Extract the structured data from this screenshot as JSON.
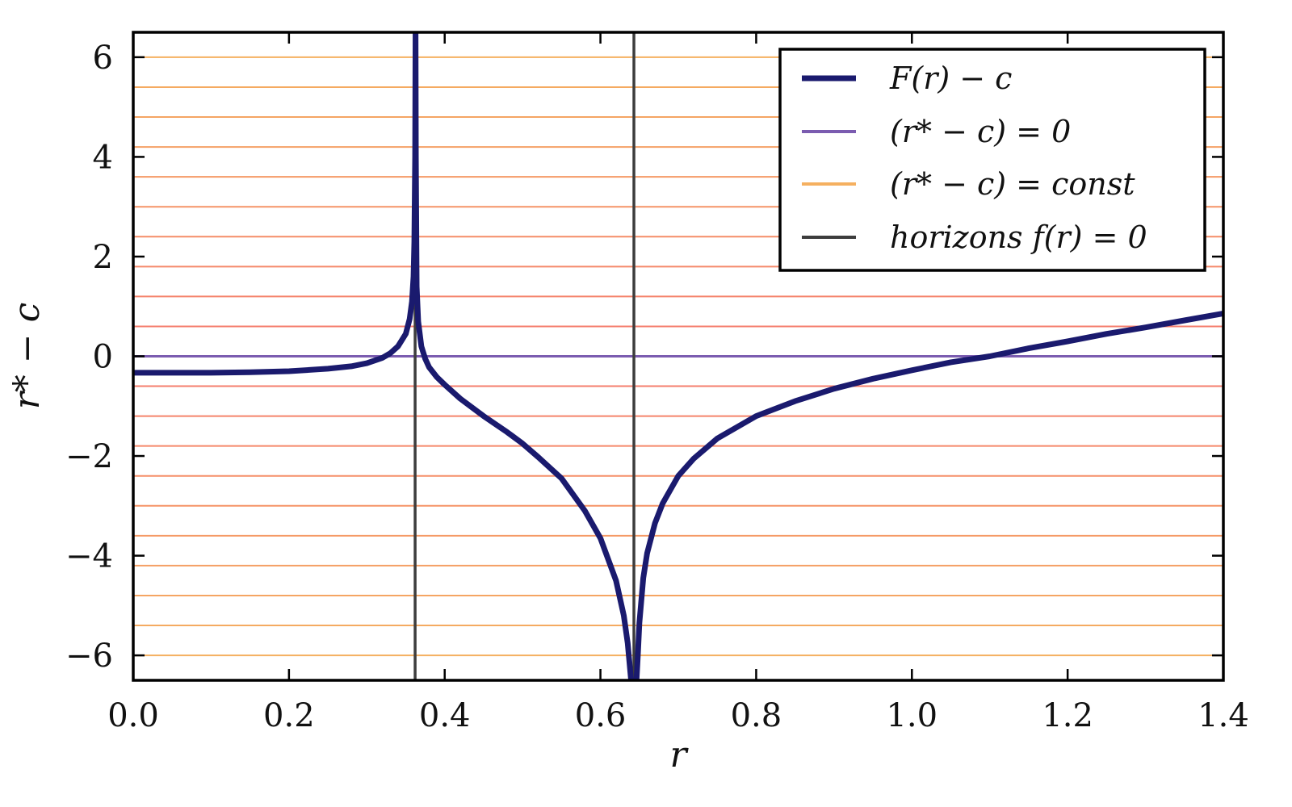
{
  "chart_data": {
    "type": "line",
    "xlabel": "r",
    "ylabel": "r* − c",
    "xlim": [
      0.0,
      1.4
    ],
    "ylim": [
      -6.5,
      6.5
    ],
    "x_ticks": [
      0.0,
      0.2,
      0.4,
      0.6,
      0.8,
      1.0,
      1.2,
      1.4
    ],
    "x_tick_labels": [
      "0.0",
      "0.2",
      "0.4",
      "0.6",
      "0.8",
      "1.0",
      "1.2",
      "1.4"
    ],
    "y_ticks": [
      6,
      4,
      2,
      0,
      -2,
      -4,
      -6
    ],
    "y_tick_labels": [
      "6",
      "4",
      "2",
      "0",
      "−2",
      "−4",
      "−6"
    ],
    "grid": false,
    "legend_position": "top-right",
    "series": [
      {
        "name": "F(r) − c",
        "color": "#1a1a6e",
        "x": [
          0.0,
          0.05,
          0.1,
          0.15,
          0.2,
          0.25,
          0.28,
          0.3,
          0.32,
          0.33,
          0.34,
          0.35,
          0.355,
          0.358,
          0.36,
          0.361,
          0.362,
          0.3625,
          0.363,
          0.364,
          0.366,
          0.37,
          0.375,
          0.38,
          0.39,
          0.4,
          0.42,
          0.45,
          0.48,
          0.5,
          0.52,
          0.55,
          0.58,
          0.6,
          0.62,
          0.63,
          0.635,
          0.64,
          0.642,
          0.643,
          0.644,
          0.645,
          0.646,
          0.648,
          0.65,
          0.655,
          0.66,
          0.67,
          0.68,
          0.7,
          0.72,
          0.75,
          0.8,
          0.85,
          0.9,
          0.95,
          1.0,
          1.05,
          1.1,
          1.15,
          1.2,
          1.25,
          1.3,
          1.35,
          1.4
        ],
        "y": [
          -0.33,
          -0.33,
          -0.33,
          -0.32,
          -0.3,
          -0.25,
          -0.2,
          -0.14,
          -0.03,
          0.06,
          0.2,
          0.45,
          0.75,
          1.1,
          1.6,
          2.3,
          4.0,
          6.6,
          4.0,
          1.4,
          0.7,
          0.2,
          -0.05,
          -0.22,
          -0.42,
          -0.57,
          -0.85,
          -1.2,
          -1.52,
          -1.75,
          -2.02,
          -2.45,
          -3.1,
          -3.65,
          -4.5,
          -5.2,
          -5.75,
          -6.6,
          -6.6,
          -6.6,
          -6.6,
          -6.6,
          -6.6,
          -6.0,
          -5.35,
          -4.45,
          -3.95,
          -3.35,
          -2.95,
          -2.4,
          -2.05,
          -1.65,
          -1.2,
          -0.9,
          -0.65,
          -0.45,
          -0.28,
          -0.12,
          0.0,
          0.16,
          0.3,
          0.45,
          0.58,
          0.72,
          0.86
        ]
      },
      {
        "name": "(r* − c) = 0",
        "color": "#7b5cb0",
        "y_constant": 0
      },
      {
        "name": "(r* − c) = const",
        "color": "#f5b060",
        "y_values": [
          6.0,
          5.4,
          4.8,
          4.2,
          3.6,
          3.0,
          2.4,
          1.8,
          1.2,
          0.6,
          -0.6,
          -1.2,
          -1.8,
          -2.4,
          -3.0,
          -3.6,
          -4.2,
          -4.8,
          -5.4,
          -6.0
        ]
      },
      {
        "name": "horizons f(r) = 0",
        "color": "#3d3d3d",
        "x_values": [
          0.362,
          0.643
        ]
      }
    ]
  }
}
